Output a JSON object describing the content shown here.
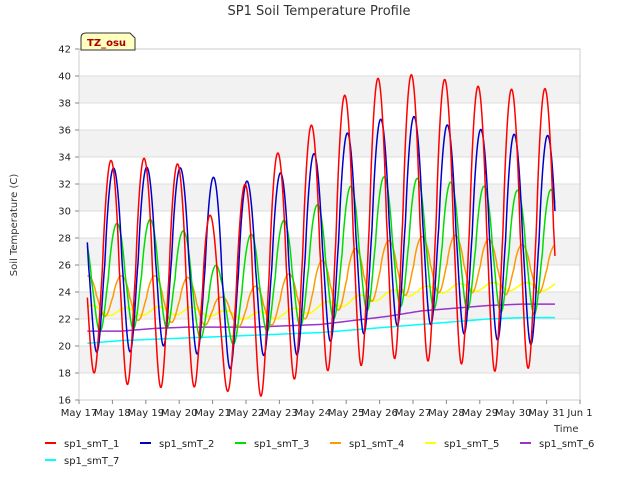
{
  "chart_data": {
    "type": "line",
    "title": "SP1 Soil Temperature Profile",
    "xlabel": "Time",
    "ylabel": "Soil Temperature (C)",
    "ylim": [
      16,
      42
    ],
    "yticks": [
      16,
      18,
      20,
      22,
      24,
      26,
      28,
      30,
      32,
      34,
      36,
      38,
      40,
      42
    ],
    "xlim": [
      0,
      15
    ],
    "xticks": [
      "May 17",
      "May 18",
      "May 19",
      "May 20",
      "May 21",
      "May 22",
      "May 23",
      "May 24",
      "May 25",
      "May 26",
      "May 27",
      "May 28",
      "May 29",
      "May 30",
      "May 31",
      "Jun 1"
    ],
    "badge": "TZ_osu",
    "legend_position": "bottom",
    "series": [
      {
        "name": "sp1_smT_1",
        "color": "#ff0000",
        "mean": [
          25.2,
          25.8,
          25.3,
          25.2,
          22.4,
          24.8,
          26.0,
          27.6,
          28.8,
          29.6,
          29.5,
          29.2,
          28.6,
          28.6,
          29.0
        ],
        "amp": [
          7.0,
          8.6,
          8.4,
          8.2,
          5.6,
          8.8,
          8.6,
          9.5,
          10.4,
          10.5,
          10.6,
          10.4,
          10.5,
          10.4,
          10.1
        ],
        "phase": 0.7
      },
      {
        "name": "sp1_smT_2",
        "color": "#0000cc",
        "mean": [
          26.0,
          26.4,
          26.6,
          26.6,
          25.1,
          25.8,
          26.0,
          27.4,
          28.4,
          29.2,
          29.4,
          28.6,
          28.3,
          27.8,
          28.0
        ],
        "amp": [
          6.4,
          7.0,
          6.6,
          6.6,
          7.2,
          6.4,
          7.0,
          7.2,
          7.7,
          7.8,
          7.6,
          7.6,
          7.7,
          7.8,
          7.6
        ],
        "phase": 0.78
      },
      {
        "name": "sp1_smT_3",
        "color": "#00dd00",
        "mean": [
          24.6,
          25.2,
          25.4,
          24.8,
          22.6,
          24.8,
          25.3,
          26.2,
          27.2,
          27.8,
          27.6,
          27.4,
          27.2,
          26.9,
          27.0
        ],
        "amp": [
          3.6,
          4.0,
          4.0,
          3.6,
          3.0,
          3.8,
          4.1,
          4.4,
          4.8,
          4.8,
          4.8,
          4.7,
          4.6,
          4.6,
          4.6
        ],
        "phase": 0.88
      },
      {
        "name": "sp1_smT_4",
        "color": "#ff9900",
        "mean": [
          23.8,
          23.6,
          23.5,
          23.4,
          22.5,
          22.9,
          23.5,
          24.3,
          25.1,
          25.7,
          26.0,
          26.1,
          25.9,
          25.6,
          25.8
        ],
        "amp": [
          1.4,
          1.6,
          1.7,
          1.7,
          1.1,
          1.5,
          1.8,
          2.0,
          2.1,
          2.1,
          2.1,
          2.1,
          2.0,
          1.9,
          1.7
        ],
        "phase": 1.02
      },
      {
        "name": "sp1_smT_5",
        "color": "#ffff00",
        "mean": [
          22.7,
          22.5,
          22.6,
          22.6,
          22.4,
          22.2,
          22.4,
          22.9,
          23.4,
          23.8,
          24.1,
          24.3,
          24.4,
          24.4,
          24.4
        ],
        "amp": [
          0.35,
          0.3,
          0.3,
          0.3,
          0.25,
          0.3,
          0.3,
          0.3,
          0.3,
          0.3,
          0.3,
          0.3,
          0.3,
          0.3,
          0.3
        ],
        "phase": 1.15
      },
      {
        "name": "sp1_smT_6",
        "color": "#9933cc",
        "mean": [
          21.1,
          21.1,
          21.3,
          21.4,
          21.4,
          21.4,
          21.5,
          21.6,
          21.9,
          22.2,
          22.6,
          22.8,
          23.0,
          23.1,
          23.1
        ],
        "amp": [
          0,
          0,
          0,
          0,
          0,
          0,
          0,
          0,
          0,
          0,
          0,
          0,
          0,
          0,
          0
        ],
        "phase": 0
      },
      {
        "name": "sp1_smT_7",
        "color": "#00ffff",
        "mean": [
          20.2,
          20.4,
          20.5,
          20.6,
          20.7,
          20.8,
          20.9,
          21.0,
          21.2,
          21.4,
          21.6,
          21.8,
          22.0,
          22.1,
          22.1
        ],
        "amp": [
          0,
          0,
          0,
          0,
          0,
          0,
          0,
          0,
          0,
          0,
          0,
          0,
          0,
          0,
          0
        ],
        "phase": 0
      }
    ]
  }
}
